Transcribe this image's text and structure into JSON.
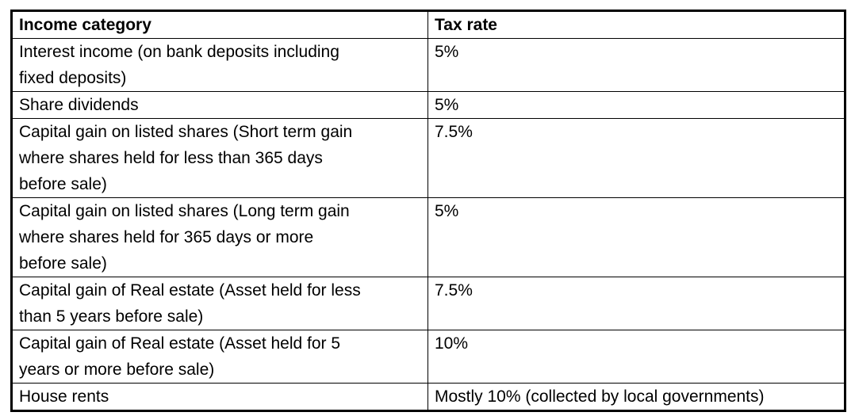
{
  "table": {
    "columns": [
      {
        "key": "category",
        "label": "Income category"
      },
      {
        "key": "rate",
        "label": "Tax rate"
      }
    ],
    "rows": [
      {
        "category": "Interest income (on bank deposits including\nfixed deposits)",
        "rate": "5%"
      },
      {
        "category": "Share dividends",
        "rate": "5%"
      },
      {
        "category": "Capital gain on listed shares (Short term gain\nwhere shares held for less than 365 days\nbefore sale)",
        "rate": "7.5%"
      },
      {
        "category": "Capital gain on listed shares (Long term gain\nwhere shares held for 365 days or more\nbefore sale)",
        "rate": "5%"
      },
      {
        "category": "Capital gain of Real estate (Asset held for less\nthan 5 years before sale)",
        "rate": "7.5%"
      },
      {
        "category": "Capital gain of Real estate (Asset held for 5\nyears or more before sale)",
        "rate": "10%"
      },
      {
        "category": "House rents",
        "rate": "Mostly 10% (collected by local governments)"
      }
    ],
    "colors": {
      "border": "#000000",
      "text": "#000000",
      "background": "#ffffff"
    }
  }
}
